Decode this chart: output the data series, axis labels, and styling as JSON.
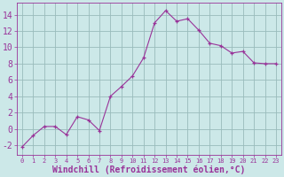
{
  "x": [
    0,
    1,
    2,
    3,
    4,
    5,
    6,
    7,
    8,
    9,
    10,
    11,
    12,
    13,
    14,
    15,
    16,
    17,
    18,
    19,
    20,
    21,
    22,
    23
  ],
  "y": [
    -2.2,
    -0.8,
    0.3,
    0.3,
    -0.7,
    1.5,
    1.1,
    -0.2,
    4.0,
    5.2,
    6.5,
    8.7,
    13.0,
    14.5,
    13.2,
    13.5,
    12.1,
    10.5,
    10.2,
    9.3,
    9.5,
    8.1,
    8.0,
    8.0
  ],
  "line_color": "#993399",
  "marker": "+",
  "marker_size": 3,
  "bg_color": "#cce8e8",
  "grid_color": "#99bbbb",
  "xlabel": "Windchill (Refroidissement éolien,°C)",
  "ylabel_ticks": [
    -2,
    0,
    2,
    4,
    6,
    8,
    10,
    12,
    14
  ],
  "xtick_labels": [
    "0",
    "1",
    "2",
    "3",
    "4",
    "5",
    "6",
    "7",
    "8",
    "9",
    "10",
    "11",
    "12",
    "13",
    "14",
    "15",
    "16",
    "17",
    "18",
    "19",
    "20",
    "21",
    "22",
    "23"
  ],
  "ylim": [
    -3.2,
    15.5
  ],
  "xlim": [
    -0.5,
    23.5
  ],
  "axis_color": "#993399",
  "tick_color": "#993399",
  "xlabel_fontsize": 7,
  "ytick_fontsize": 7,
  "xtick_fontsize": 5
}
